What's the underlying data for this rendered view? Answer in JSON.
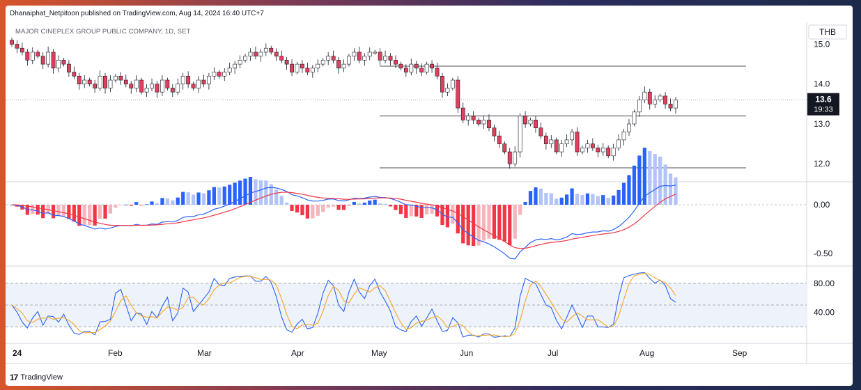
{
  "header": {
    "published": "Dhanaiphat_Netpitoon published on TradingView.com, Aug 14, 2024 16:40 UTC+7",
    "symbol": "MAJOR CINEPLEX GROUP PUBLIC COMPANY, 1D, SET"
  },
  "currency": "THB",
  "price_label": {
    "price": "13.6",
    "countdown": "19:33"
  },
  "footer": {
    "brand": "TradingView",
    "logo": "17"
  },
  "colors": {
    "up": "#ffffff",
    "down": "#e0405e",
    "macd": "#2962ff",
    "signal": "#f23645",
    "hist_pos_dark": "#2962ff",
    "hist_pos_light": "#b2c4f7",
    "hist_neg_dark": "#f23645",
    "hist_neg_light": "#f7b4bb",
    "stoch_k": "#2962ff",
    "stoch_d": "#f5a623"
  },
  "chart_data": [
    {
      "type": "candlestick",
      "title": "MAJOR CINEPLEX GROUP PUBLIC COMPANY, 1D, SET",
      "ylabel": "THB",
      "ylim": [
        11.55,
        15.55
      ],
      "y_ticks": [
        "15.0",
        "14.0",
        "13.0",
        "12.0"
      ],
      "x_ticks": [
        "24",
        "Feb",
        "Mar",
        "Apr",
        "May",
        "Jun",
        "Jul",
        "Aug",
        "Sep"
      ],
      "last_price": 13.6,
      "horizontal_lines": [
        14.45,
        13.2,
        11.9
      ],
      "close": [
        15.0,
        14.9,
        14.8,
        14.6,
        14.8,
        14.7,
        14.5,
        14.8,
        14.4,
        14.6,
        14.5,
        14.3,
        14.2,
        14.0,
        14.1,
        14.0,
        13.9,
        14.2,
        13.9,
        14.1,
        14.2,
        14.1,
        14.0,
        13.9,
        14.1,
        13.8,
        13.9,
        14.0,
        13.8,
        14.1,
        13.9,
        13.8,
        14.0,
        14.2,
        14.0,
        13.9,
        14.1,
        14.0,
        14.2,
        14.3,
        14.2,
        14.3,
        14.4,
        14.5,
        14.6,
        14.7,
        14.8,
        14.7,
        14.8,
        14.9,
        14.8,
        14.7,
        14.6,
        14.5,
        14.3,
        14.5,
        14.4,
        14.3,
        14.4,
        14.5,
        14.6,
        14.7,
        14.6,
        14.4,
        14.5,
        14.7,
        14.8,
        14.6,
        14.7,
        14.8,
        14.8,
        14.6,
        14.7,
        14.6,
        14.5,
        14.4,
        14.3,
        14.5,
        14.4,
        14.3,
        14.5,
        14.4,
        14.2,
        13.8,
        13.9,
        14.1,
        13.4,
        13.1,
        13.2,
        13.1,
        13.0,
        13.1,
        12.9,
        12.7,
        12.5,
        12.3,
        12.0,
        12.3,
        13.2,
        13.0,
        13.1,
        12.9,
        12.7,
        12.5,
        12.6,
        12.3,
        12.5,
        12.6,
        12.8,
        12.3,
        12.4,
        12.5,
        12.4,
        12.3,
        12.4,
        12.2,
        12.4,
        12.6,
        12.8,
        13.0,
        13.3,
        13.6,
        13.8,
        13.5,
        13.6,
        13.7,
        13.5,
        13.4,
        13.6
      ],
      "stoch_k_ylim": [
        0,
        100
      ],
      "stoch_ticks": [
        "80.00",
        "40.00"
      ],
      "macd_ticks": [
        "0.00",
        "-0.50"
      ]
    }
  ]
}
